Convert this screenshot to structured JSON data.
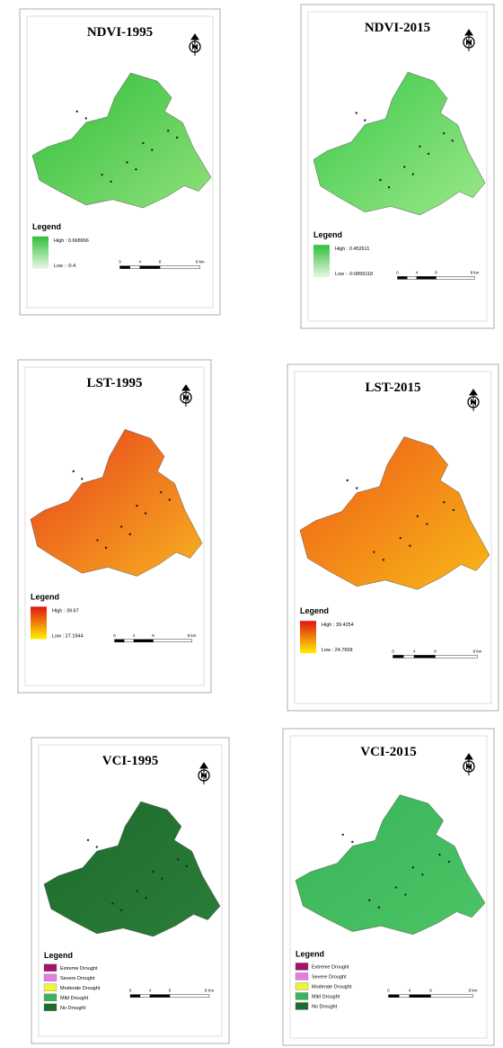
{
  "panels": [
    {
      "title": "NDVI-1995",
      "legend_title": "Legend",
      "legend_style": "gradient",
      "map_colors": [
        "#2fbf3a",
        "#8fe07a"
      ],
      "items": [
        {
          "label": "High : 0.668966",
          "color": "#2fbf3a"
        },
        {
          "label": "Low : -0.4",
          "color": "#e8f8e4"
        }
      ],
      "scale": [
        "0",
        "4",
        "8",
        "8 km"
      ]
    },
    {
      "title": "NDVI-2015",
      "legend_title": "Legend",
      "legend_style": "gradient",
      "map_colors": [
        "#3cc84a",
        "#9be888"
      ],
      "items": [
        {
          "label": "High : 0.452611",
          "color": "#2fbf3a"
        },
        {
          "label": "Low : -0.0859118",
          "color": "#e8f8e4"
        }
      ],
      "scale": [
        "0",
        "4",
        "8",
        "8 km"
      ]
    },
    {
      "title": "LST-1995",
      "legend_title": "Legend",
      "legend_style": "gradient",
      "map_colors": [
        "#e8401c",
        "#f7b020"
      ],
      "items": [
        {
          "label": "High : 39.67",
          "color": "#e01414"
        },
        {
          "label": "Low : 27.1944",
          "color": "#fff000"
        }
      ],
      "scale": [
        "0",
        "4",
        "8",
        "8 km"
      ]
    },
    {
      "title": "LST-2015",
      "legend_title": "Legend",
      "legend_style": "gradient",
      "map_colors": [
        "#ee5a18",
        "#f8b818"
      ],
      "items": [
        {
          "label": "High : 39.4254",
          "color": "#e01414"
        },
        {
          "label": "Low : 24.7658",
          "color": "#fff000"
        }
      ],
      "scale": [
        "0",
        "4",
        "8",
        "8 km"
      ]
    },
    {
      "title": "VCI-1995",
      "legend_title": "Legend",
      "legend_style": "swatches",
      "map_colors": [
        "#1e6b2e",
        "#2a7d38"
      ],
      "items": [
        {
          "label": "Extreme Drought",
          "color": "#a0146e"
        },
        {
          "label": "Severe Drought",
          "color": "#e87ce0"
        },
        {
          "label": "Moderate Drought",
          "color": "#f2f23c"
        },
        {
          "label": "Mild Drought",
          "color": "#3cb55a"
        },
        {
          "label": "No Drought",
          "color": "#1e6b2e"
        }
      ],
      "scale": [
        "0",
        "4",
        "8",
        "8 Km"
      ]
    },
    {
      "title": "VCI-2015",
      "legend_title": "Legend",
      "legend_style": "swatches",
      "map_colors": [
        "#38b456",
        "#4cc466"
      ],
      "items": [
        {
          "label": "Extreme Drought",
          "color": "#a0146e"
        },
        {
          "label": "Severe Drought",
          "color": "#e87ce0"
        },
        {
          "label": "Moderate Drought",
          "color": "#f2f23c"
        },
        {
          "label": "Mild Drought",
          "color": "#3cb55a"
        },
        {
          "label": "No Drought",
          "color": "#1e6b2e"
        }
      ],
      "scale": [
        "0",
        "4",
        "8",
        "8 km"
      ]
    }
  ]
}
